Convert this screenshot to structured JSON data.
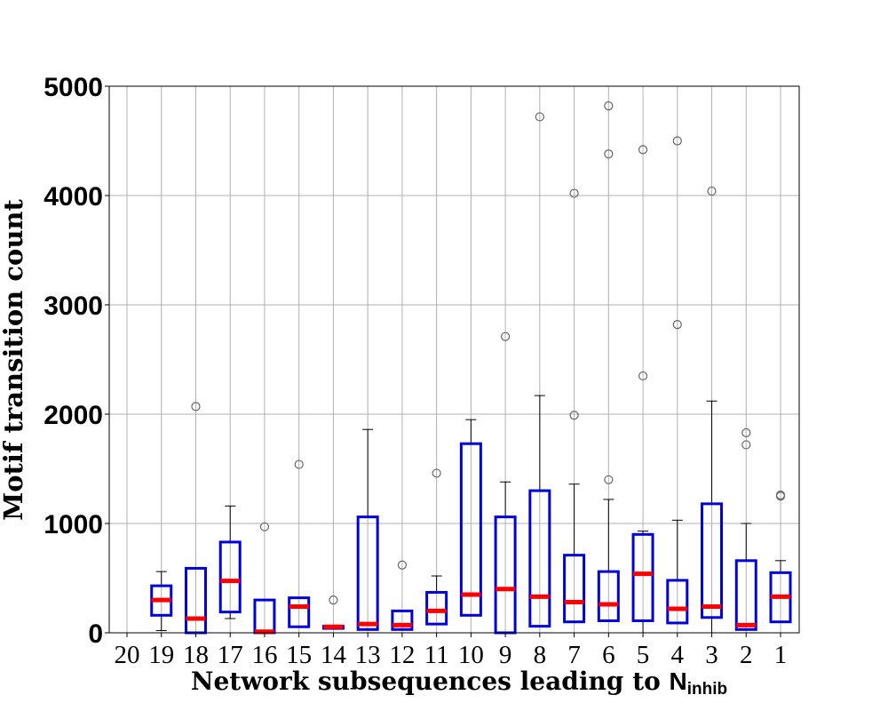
{
  "chart_data": {
    "type": "boxplot",
    "title": "",
    "xlabel": "Network subsequences leading to ",
    "xlabel_symbol": "N",
    "xlabel_subscript": "inhib",
    "ylabel": "Motif transition count",
    "ylim": [
      0,
      5000
    ],
    "yticks": [
      "0",
      "1000",
      "2000",
      "3000",
      "4000",
      "5000"
    ],
    "grid": true,
    "colors": {
      "box": "#0000dd",
      "median": "#ff0000",
      "whisker": "#000000",
      "outlier": "#666666",
      "grid": "#b0b0b0"
    },
    "categories": [
      "20",
      "19",
      "18",
      "17",
      "16",
      "15",
      "14",
      "13",
      "12",
      "11",
      "10",
      "9",
      "8",
      "7",
      "6",
      "5",
      "4",
      "3",
      "2",
      "1"
    ],
    "boxes": [
      {
        "label": "20",
        "empty": true
      },
      {
        "label": "19",
        "q1": 160,
        "median": 300,
        "q3": 430,
        "whislo": 20,
        "whishi": 560,
        "fliers": []
      },
      {
        "label": "18",
        "q1": 0,
        "median": 130,
        "q3": 590,
        "whislo": 0,
        "whishi": 590,
        "fliers": [
          2070
        ]
      },
      {
        "label": "17",
        "q1": 190,
        "median": 475,
        "q3": 830,
        "whislo": 130,
        "whishi": 1160,
        "fliers": []
      },
      {
        "label": "16",
        "q1": 0,
        "median": 10,
        "q3": 300,
        "whislo": 0,
        "whishi": 300,
        "fliers": [
          970
        ]
      },
      {
        "label": "15",
        "q1": 55,
        "median": 240,
        "q3": 320,
        "whislo": 55,
        "whishi": 320,
        "fliers": [
          1540
        ]
      },
      {
        "label": "14",
        "q1": 40,
        "median": 55,
        "q3": 60,
        "whislo": 40,
        "whishi": 60,
        "fliers": [
          300
        ]
      },
      {
        "label": "13",
        "q1": 30,
        "median": 80,
        "q3": 1060,
        "whislo": 30,
        "whishi": 1860,
        "fliers": []
      },
      {
        "label": "12",
        "q1": 30,
        "median": 70,
        "q3": 200,
        "whislo": 30,
        "whishi": 200,
        "fliers": [
          620
        ]
      },
      {
        "label": "11",
        "q1": 80,
        "median": 200,
        "q3": 370,
        "whislo": 80,
        "whishi": 520,
        "fliers": [
          1460
        ]
      },
      {
        "label": "10",
        "q1": 160,
        "median": 350,
        "q3": 1730,
        "whislo": 160,
        "whishi": 1950,
        "fliers": []
      },
      {
        "label": "9",
        "q1": 0,
        "median": 400,
        "q3": 1060,
        "whislo": 0,
        "whishi": 1380,
        "fliers": [
          2710
        ]
      },
      {
        "label": "8",
        "q1": 60,
        "median": 330,
        "q3": 1300,
        "whislo": 60,
        "whishi": 2170,
        "fliers": [
          4720
        ]
      },
      {
        "label": "7",
        "q1": 100,
        "median": 280,
        "q3": 710,
        "whislo": 100,
        "whishi": 1360,
        "fliers": [
          1990,
          4020
        ]
      },
      {
        "label": "6",
        "q1": 110,
        "median": 260,
        "q3": 560,
        "whislo": 110,
        "whishi": 1220,
        "fliers": [
          1400,
          4380,
          4820
        ]
      },
      {
        "label": "5",
        "q1": 110,
        "median": 540,
        "q3": 900,
        "whislo": 0,
        "whishi": 930,
        "fliers": [
          2350,
          4420
        ]
      },
      {
        "label": "4",
        "q1": 90,
        "median": 220,
        "q3": 480,
        "whislo": 90,
        "whishi": 1030,
        "fliers": [
          2820,
          4500
        ]
      },
      {
        "label": "3",
        "q1": 140,
        "median": 240,
        "q3": 1180,
        "whislo": 0,
        "whishi": 2120,
        "fliers": [
          4040
        ]
      },
      {
        "label": "2",
        "q1": 30,
        "median": 70,
        "q3": 660,
        "whislo": 30,
        "whishi": 1000,
        "fliers": [
          1720,
          1830
        ]
      },
      {
        "label": "1",
        "q1": 100,
        "median": 330,
        "q3": 550,
        "whislo": 100,
        "whishi": 660,
        "fliers": [
          1250,
          1260
        ]
      }
    ]
  }
}
